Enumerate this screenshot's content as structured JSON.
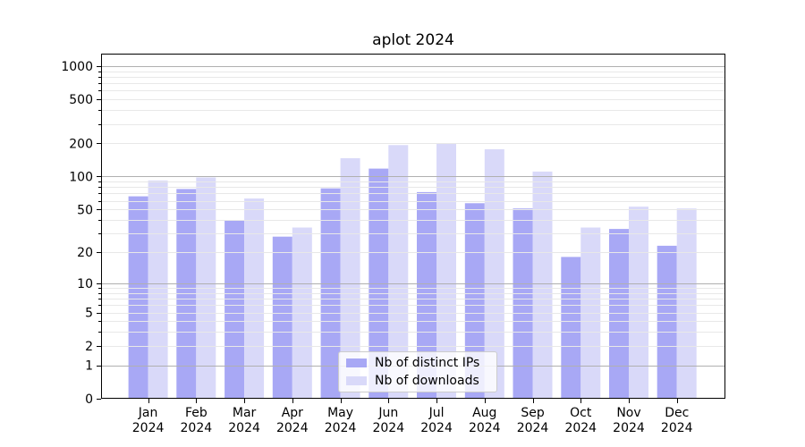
{
  "figure": {
    "title": "aplot 2024"
  },
  "colors": {
    "ips_bar": "#a8a8f5",
    "downloads_bar": "#d9d9f9",
    "grid_major": "#b0b0b0",
    "grid_minor": "#e8e8e8",
    "spine": "#000000",
    "tick_text": "#000000",
    "legend_border": "#cccccc"
  },
  "legend": {
    "items": [
      {
        "label": "Nb of distinct IPs",
        "color": "#a8a8f5"
      },
      {
        "label": "Nb of downloads",
        "color": "#d9d9f9"
      }
    ]
  },
  "y_axis": {
    "tick_labels": [
      "0",
      "1",
      "2",
      "5",
      "10",
      "20",
      "50",
      "100",
      "200",
      "500",
      "1000"
    ]
  },
  "x_axis": {
    "tick_labels": [
      "Jan 2024",
      "Feb 2024",
      "Mar 2024",
      "Apr 2024",
      "May 2024",
      "Jun 2024",
      "Jul 2024",
      "Aug 2024",
      "Sep 2024",
      "Oct 2024",
      "Nov 2024",
      "Dec 2024"
    ]
  },
  "chart_data": {
    "type": "bar",
    "title": "aplot 2024",
    "categories": [
      "Jan 2024",
      "Feb 2024",
      "Mar 2024",
      "Apr 2024",
      "May 2024",
      "Jun 2024",
      "Jul 2024",
      "Aug 2024",
      "Sep 2024",
      "Oct 2024",
      "Nov 2024",
      "Dec 2024"
    ],
    "series": [
      {
        "name": "Nb of distinct IPs",
        "color": "#a8a8f5",
        "values": [
          66,
          77,
          40,
          28,
          78,
          118,
          72,
          57,
          51,
          18,
          33,
          23
        ]
      },
      {
        "name": "Nb of downloads",
        "color": "#d9d9f9",
        "values": [
          92,
          98,
          63,
          34,
          147,
          193,
          200,
          177,
          111,
          34,
          53,
          51
        ]
      }
    ],
    "yscale": "symlog (plotted as log10(value+1))",
    "yticks": [
      0,
      1,
      2,
      5,
      10,
      20,
      50,
      100,
      200,
      500,
      1000
    ],
    "yticks_minor": [
      3,
      4,
      6,
      7,
      8,
      9,
      30,
      40,
      60,
      70,
      80,
      90,
      300,
      400,
      600,
      700,
      800,
      900
    ],
    "grid_major_at": [
      1,
      10,
      100,
      1000
    ],
    "grid_minor_at": [
      2,
      3,
      4,
      5,
      6,
      7,
      8,
      9,
      20,
      30,
      40,
      50,
      60,
      70,
      80,
      90,
      200,
      300,
      400,
      500,
      600,
      700,
      800,
      900
    ],
    "ylim": [
      0,
      1300
    ],
    "grid": true,
    "legend_position": "lower center",
    "xlabel": "",
    "ylabel": ""
  }
}
